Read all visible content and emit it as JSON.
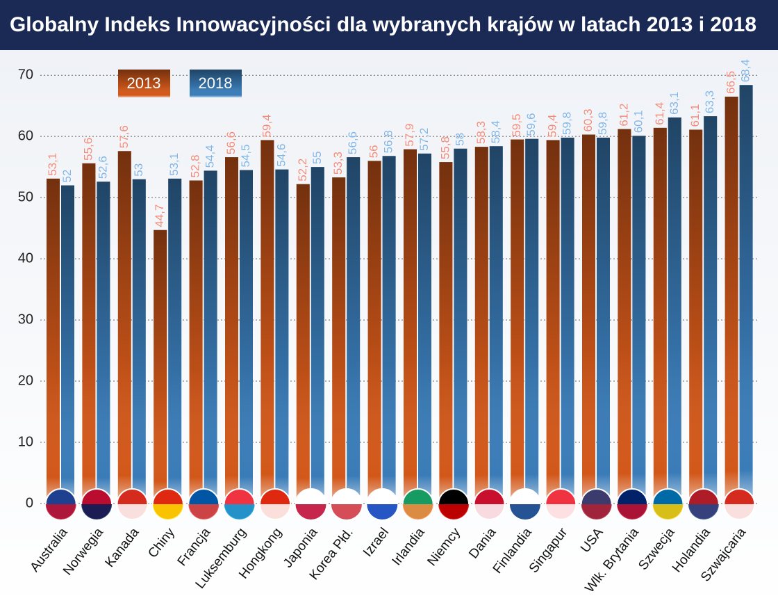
{
  "chart_data": {
    "type": "bar",
    "title": "Globalny Indeks Innowacyjności dla wybranych krajów w latach 2013 i 2018",
    "categories": [
      "Australia",
      "Norwegia",
      "Kanada",
      "Chiny",
      "Francja",
      "Luksemburg",
      "Hongkong",
      "Japonia",
      "Korea Płd.",
      "Izrael",
      "Irlandia",
      "Niemcy",
      "Dania",
      "Finlandia",
      "Singapur",
      "USA",
      "Wlk. Brytania",
      "Szwecja",
      "Holandia",
      "Szwajcaria"
    ],
    "series": [
      {
        "name": "2013",
        "color": "#d2581a",
        "values": [
          53.1,
          55.6,
          57.6,
          44.7,
          52.8,
          56.6,
          59.4,
          52.2,
          53.3,
          56,
          57.9,
          55.8,
          58.3,
          59.5,
          59.4,
          60.3,
          61.2,
          61.4,
          61.1,
          66.5
        ],
        "value_labels": [
          "53,1",
          "55,6",
          "57,6",
          "44,7",
          "52,8",
          "56,6",
          "59,4",
          "52,2",
          "53,3",
          "56",
          "57,9",
          "55,8",
          "58,3",
          "59,5",
          "59,4",
          "60,3",
          "61,2",
          "61,4",
          "61,1",
          "66,5"
        ]
      },
      {
        "name": "2018",
        "color": "#3a7cb8",
        "values": [
          52,
          52.6,
          53,
          53.1,
          54.4,
          54.5,
          54.6,
          55,
          56.6,
          56.8,
          57.2,
          58,
          58.4,
          59.6,
          59.8,
          59.8,
          60.1,
          63.1,
          63.3,
          68.4
        ],
        "value_labels": [
          "52",
          "52,6",
          "53",
          "53,1",
          "54,4",
          "54,5",
          "54,6",
          "55",
          "56,6",
          "56,8",
          "57,2",
          "58",
          "58,4",
          "59,6",
          "59,8",
          "59,8",
          "60,1",
          "63,1",
          "63,3",
          "68,4"
        ]
      }
    ],
    "ylim": [
      0,
      74
    ],
    "yticks": [
      0,
      10,
      20,
      30,
      40,
      50,
      60,
      70
    ],
    "grid": true
  }
}
